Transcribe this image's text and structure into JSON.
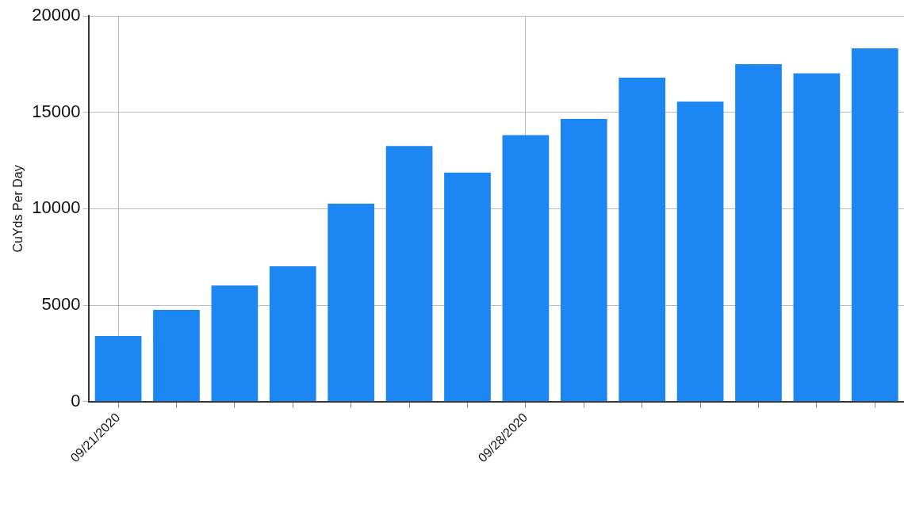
{
  "chart_data": {
    "type": "bar",
    "ylabel": "CuYds Per Day",
    "categories": [
      "09/21/2020",
      null,
      null,
      null,
      null,
      null,
      null,
      "09/28/2020",
      null,
      null,
      null,
      null,
      null,
      null
    ],
    "series": [
      {
        "color": "#1c87f2",
        "values": [
          3400,
          4760,
          6020,
          7020,
          10260,
          13250,
          11880,
          13820,
          14660,
          16800,
          15550,
          17490,
          17020,
          18320
        ]
      }
    ],
    "ylim": [
      0,
      20000
    ],
    "yticks": [
      0,
      5000,
      10000,
      15000,
      20000
    ],
    "grid": true,
    "legend": false
  }
}
